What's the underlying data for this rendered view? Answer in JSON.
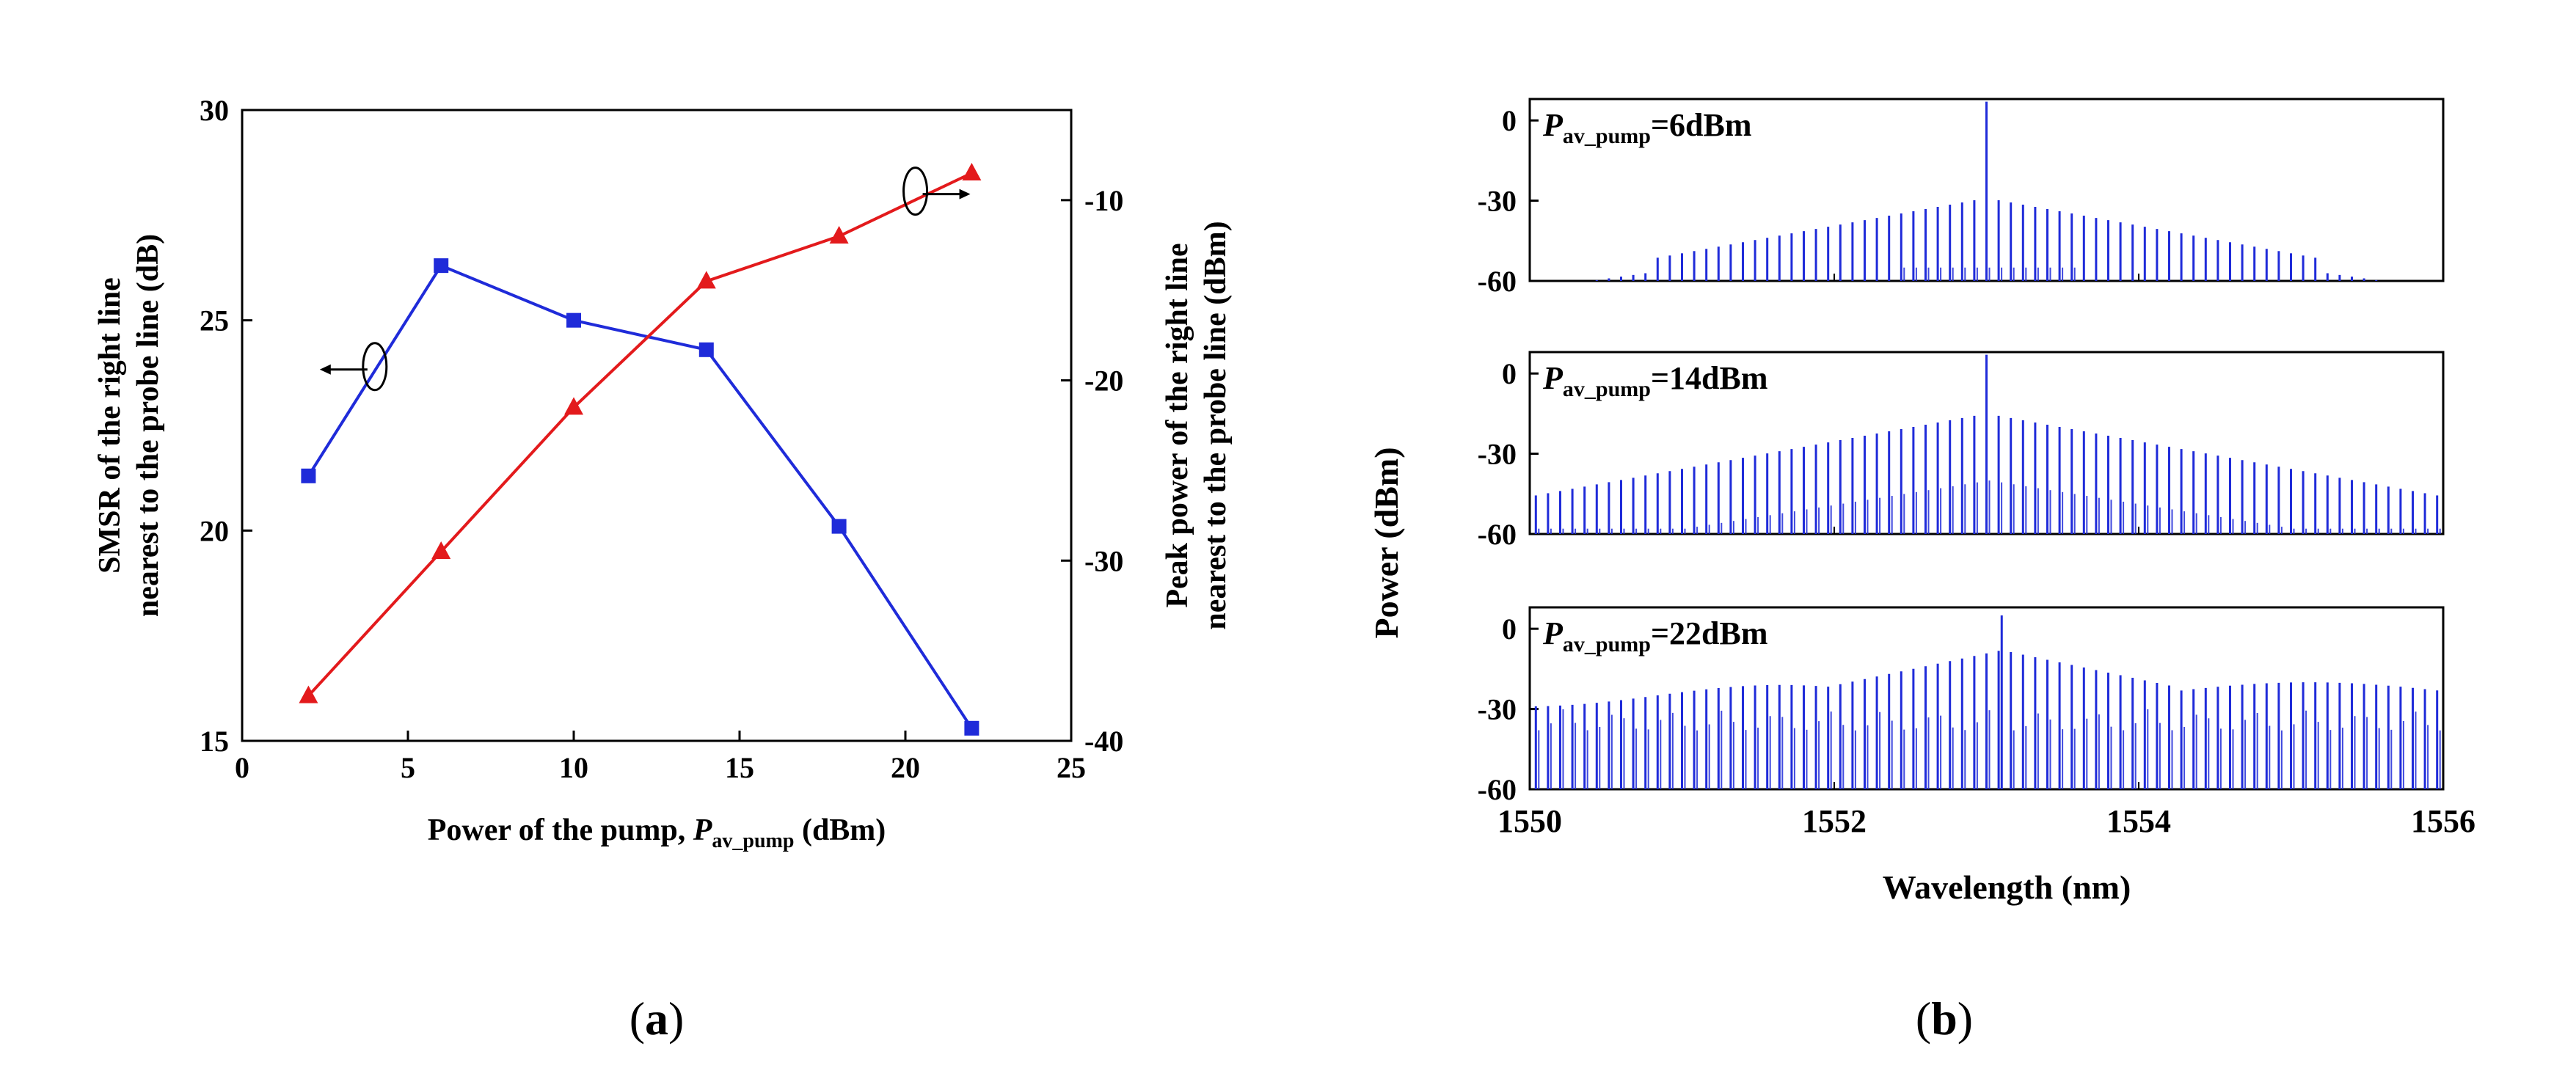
{
  "colors": {
    "blue": "#1f2bd9",
    "red": "#e31a1c",
    "axis": "#000000",
    "panel_bg": "#ffffff"
  },
  "panel_labels": {
    "a": "a",
    "b": "b"
  },
  "chart_data": [
    {
      "type": "line",
      "panel": "a",
      "title": "",
      "xlabel": {
        "text": "Power of the pump, ",
        "italic": "P",
        "sub": "av_pump",
        "unit": " (dBm)"
      },
      "ylabel_left": [
        "SMSR of the right line",
        "nearest to the probe line (dB)"
      ],
      "ylabel_right": [
        "Peak power of the right line",
        "nearest to the probe line (dBm)"
      ],
      "xlim": [
        0,
        25
      ],
      "ylim_left": [
        15,
        30
      ],
      "ylim_right": [
        -40,
        -5
      ],
      "x_ticks": [
        0,
        5,
        10,
        15,
        20,
        25
      ],
      "y_ticks_left": [
        15,
        20,
        25,
        30
      ],
      "y_ticks_right": [
        -40,
        -30,
        -20,
        -10
      ],
      "series": [
        {
          "name": "SMSR",
          "axis": "left",
          "color": "#1f2bd9",
          "marker": "square",
          "x": [
            2,
            6,
            10,
            14,
            18,
            22
          ],
          "values": [
            21.3,
            26.3,
            25.0,
            24.3,
            20.1,
            15.3
          ]
        },
        {
          "name": "Peak power",
          "axis": "right",
          "color": "#e31a1c",
          "marker": "triangle",
          "x": [
            2,
            6,
            10,
            14,
            18,
            22
          ],
          "values": [
            -37.5,
            -29.5,
            -21.5,
            -14.5,
            -12.0,
            -8.5
          ]
        }
      ],
      "annotations": [
        {
          "type": "ellipse-arrow",
          "target": "left",
          "x": 4.0,
          "y": 23.9
        },
        {
          "type": "ellipse-arrow",
          "target": "right",
          "x": 20.3,
          "y_right": -9.5
        }
      ]
    },
    {
      "type": "spectrum",
      "panel": "b",
      "xlabel": "Wavelength (nm)",
      "ylabel": "Power (dBm)",
      "xlim": [
        1550,
        1556
      ],
      "x_ticks": [
        1550,
        1552,
        1554,
        1556
      ],
      "subplots": [
        {
          "label_italic": "P",
          "label_sub": "av_pump",
          "label_rest": "=6dBm",
          "ylim": [
            -60,
            8
          ],
          "y_ticks": [
            0,
            -30,
            -60
          ],
          "center": 1553.0,
          "center_peak": 7,
          "line_spacing_nm": 0.08,
          "envelope": "triangle",
          "peak_near_center": -29,
          "floor_edge": -60,
          "range": [
            1550.0,
            1555.6
          ]
        },
        {
          "label_italic": "P",
          "label_sub": "av_pump",
          "label_rest": "=14dBm",
          "ylim": [
            -60,
            8
          ],
          "y_ticks": [
            0,
            -30,
            -60
          ],
          "center": 1553.0,
          "center_peak": 7,
          "line_spacing_nm": 0.08,
          "envelope": "triangle",
          "peak_near_center": -15,
          "floor_edge": -46,
          "range": [
            1550.0,
            1556.0
          ]
        },
        {
          "label_italic": "P",
          "label_sub": "av_pump",
          "label_rest": "=22dBm",
          "ylim": [
            -60,
            8
          ],
          "y_ticks": [
            0,
            -30,
            -60
          ],
          "center": 1553.1,
          "center_peak": 5,
          "line_spacing_nm": 0.08,
          "envelope": "lobed",
          "peak_near_center": -8,
          "floor_edge": -25,
          "range": [
            1550.0,
            1556.0
          ]
        }
      ]
    }
  ]
}
